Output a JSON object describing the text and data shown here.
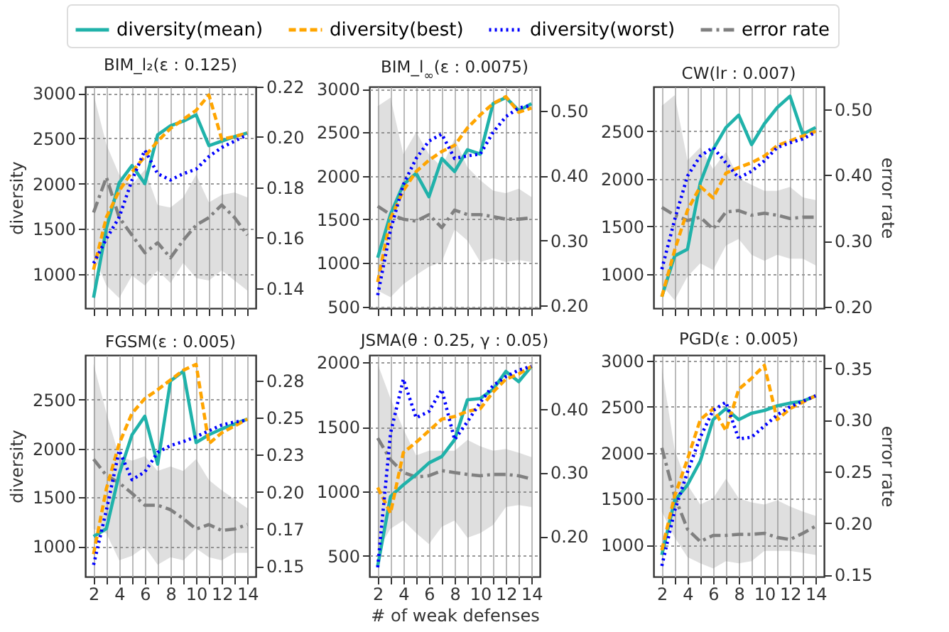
{
  "chart_data": [
    {
      "type": "line",
      "title": "BIM_l₂(ε : 0.125)",
      "ylabel": "diversity",
      "x": [
        2,
        3,
        4,
        5,
        6,
        7,
        8,
        9,
        10,
        11,
        12,
        13,
        14
      ],
      "xlim": [
        1.35,
        14.65
      ],
      "xticks": [
        2,
        {
          "value": 3,
          "label": null
        },
        4,
        {
          "value": 5,
          "label": null
        },
        6,
        {
          "value": 7,
          "label": null
        },
        8,
        {
          "value": 9,
          "label": null
        },
        10,
        {
          "value": 11,
          "label": null
        },
        12,
        {
          "value": 13,
          "label": null
        },
        14
      ],
      "ylim": [
        624,
        3072
      ],
      "yticks": [
        1000,
        1500,
        2000,
        2500,
        3000
      ],
      "y2lim": [
        0.132,
        0.22
      ],
      "y2ticks": [
        0.14,
        0.16,
        0.18,
        {
          "value": 0.2,
          "label": "0.20"
        },
        0.22
      ],
      "grid": true,
      "legend": "top",
      "tick_labels": "y",
      "series": [
        {
          "name": "diversity(mean)",
          "color": "#20b2aa",
          "line_style": "solid",
          "values": [
            740,
            1510,
            2010,
            2200,
            2000,
            2540,
            2640,
            2690,
            2760,
            2420,
            2470,
            2520,
            2560
          ]
        },
        {
          "name": "diversity(best)",
          "color": "#ffa500",
          "line_style": "dashed",
          "values": [
            1050,
            1630,
            1920,
            2130,
            2300,
            2470,
            2610,
            2710,
            2810,
            2980,
            2490,
            2520,
            2560
          ]
        },
        {
          "name": "diversity(worst)",
          "color": "#0000ff",
          "line_style": "dotted",
          "values": [
            1120,
            1390,
            1630,
            2040,
            2370,
            2110,
            2040,
            2110,
            2160,
            2300,
            2400,
            2470,
            2540
          ]
        },
        {
          "name": "error rate",
          "color": "#808080",
          "line_style": "dashdot",
          "axis": "y2",
          "values": [
            0.17,
            0.184,
            0.168,
            0.161,
            0.154,
            0.158,
            0.152,
            0.159,
            0.165,
            0.168,
            0.173,
            0.168,
            0.161
          ],
          "lower": [
            0.153,
            0.141,
            0.136,
            0.145,
            0.141,
            0.147,
            0.142,
            0.15,
            0.144,
            0.143,
            0.147,
            0.143,
            0.139
          ],
          "upper": [
            0.217,
            0.197,
            0.185,
            0.181,
            0.187,
            0.173,
            0.172,
            0.176,
            0.185,
            0.174,
            0.177,
            0.178,
            0.176
          ]
        }
      ]
    },
    {
      "type": "line",
      "title": "BIM_l$_{∞}$(ε : 0.0075)",
      "x": [
        2,
        3,
        4,
        5,
        6,
        7,
        8,
        9,
        10,
        11,
        12,
        13,
        14
      ],
      "xlim": [
        1.35,
        14.65
      ],
      "xticks": [
        2,
        {
          "value": 3,
          "label": null
        },
        4,
        {
          "value": 5,
          "label": null
        },
        6,
        {
          "value": 7,
          "label": null
        },
        8,
        {
          "value": 9,
          "label": null
        },
        10,
        {
          "value": 11,
          "label": null
        },
        12,
        {
          "value": 13,
          "label": null
        },
        14
      ],
      "ylim": [
        480,
        3025
      ],
      "yticks": [
        500,
        1000,
        1500,
        2000,
        2500,
        3000
      ],
      "y2lim": [
        0.196,
        0.537
      ],
      "y2ticks": [
        {
          "value": 0.2,
          "label": "0.20"
        },
        {
          "value": 0.3,
          "label": "0.30"
        },
        {
          "value": 0.4,
          "label": "0.40"
        },
        {
          "value": 0.5,
          "label": "0.50"
        }
      ],
      "grid": true,
      "tick_labels": "y",
      "series": [
        {
          "color": "#20b2aa",
          "line_style": "solid",
          "values": [
            1060,
            1560,
            1900,
            2030,
            1760,
            2200,
            2050,
            2300,
            2250,
            2830,
            2900,
            2750,
            2830
          ]
        },
        {
          "color": "#ffa500",
          "line_style": "dashed",
          "values": [
            780,
            1510,
            1830,
            2050,
            2180,
            2280,
            2350,
            2550,
            2700,
            2830,
            2910,
            2730,
            2780
          ]
        },
        {
          "color": "#0000ff",
          "line_style": "dotted",
          "values": [
            630,
            1380,
            1900,
            2200,
            2400,
            2480,
            2200,
            2230,
            2250,
            2500,
            2680,
            2780,
            2810
          ]
        },
        {
          "color": "#808080",
          "line_style": "dashdot",
          "axis": "y2",
          "values": [
            0.353,
            0.34,
            0.333,
            0.33,
            0.34,
            0.32,
            0.347,
            0.34,
            0.34,
            0.337,
            0.333,
            0.333,
            0.335
          ],
          "lower": [
            0.223,
            0.213,
            0.233,
            0.247,
            0.26,
            0.267,
            0.317,
            0.3,
            0.267,
            0.273,
            0.267,
            0.27,
            0.267
          ],
          "upper": [
            0.507,
            0.52,
            0.433,
            0.467,
            0.433,
            0.413,
            0.457,
            0.413,
            0.393,
            0.377,
            0.373,
            0.38,
            0.367
          ]
        }
      ]
    },
    {
      "type": "line",
      "title": "CW(lr : 0.007)",
      "y2label": "error rate",
      "x": [
        2,
        3,
        4,
        5,
        6,
        7,
        8,
        9,
        10,
        11,
        12,
        13,
        14
      ],
      "xlim": [
        1.35,
        14.65
      ],
      "xticks": [
        2,
        {
          "value": 3,
          "label": null
        },
        4,
        {
          "value": 5,
          "label": null
        },
        6,
        {
          "value": 7,
          "label": null
        },
        8,
        {
          "value": 9,
          "label": null
        },
        10,
        {
          "value": 11,
          "label": null
        },
        12,
        {
          "value": 13,
          "label": null
        },
        14
      ],
      "ylim": [
        640,
        2970
      ],
      "yticks": [
        1000,
        1500,
        2000,
        2500
      ],
      "y2lim": [
        0.198,
        0.534
      ],
      "y2ticks": [
        {
          "value": 0.2,
          "label": "0.20"
        },
        {
          "value": 0.3,
          "label": "0.30"
        },
        {
          "value": 0.4,
          "label": "0.40"
        },
        {
          "value": 0.5,
          "label": "0.50"
        }
      ],
      "grid": true,
      "tick_labels": "y",
      "series": [
        {
          "color": "#20b2aa",
          "line_style": "solid",
          "values": [
            760,
            1190,
            1260,
            1960,
            2310,
            2540,
            2670,
            2360,
            2580,
            2750,
            2870,
            2470,
            2540
          ]
        },
        {
          "color": "#ffa500",
          "line_style": "dashed",
          "values": [
            760,
            1250,
            1670,
            1920,
            1800,
            2060,
            2120,
            2170,
            2240,
            2350,
            2400,
            2450,
            2500
          ]
        },
        {
          "color": "#0000ff",
          "line_style": "dotted",
          "values": [
            1050,
            1570,
            2030,
            2240,
            2330,
            2170,
            2010,
            2080,
            2190,
            2330,
            2380,
            2420,
            2490
          ]
        },
        {
          "color": "#808080",
          "line_style": "dashdot",
          "axis": "y2",
          "values": [
            0.351,
            0.339,
            0.331,
            0.336,
            0.318,
            0.344,
            0.346,
            0.339,
            0.342,
            0.339,
            0.334,
            0.336,
            0.336
          ],
          "lower": [
            0.233,
            0.21,
            0.246,
            0.266,
            0.256,
            0.293,
            0.303,
            0.279,
            0.27,
            0.279,
            0.273,
            0.273,
            0.263
          ],
          "upper": [
            0.505,
            0.521,
            0.422,
            0.442,
            0.409,
            0.435,
            0.395,
            0.385,
            0.376,
            0.376,
            0.382,
            0.366,
            0.362
          ]
        }
      ]
    },
    {
      "type": "line",
      "title": "FGSM(ε : 0.005)",
      "ylabel": "diversity",
      "x": [
        2,
        3,
        4,
        5,
        6,
        7,
        8,
        9,
        10,
        11,
        12,
        13,
        14
      ],
      "xlim": [
        1.35,
        14.65
      ],
      "xticks": [
        2,
        {
          "value": 3,
          "label": null
        },
        4,
        {
          "value": 5,
          "label": null
        },
        6,
        {
          "value": 7,
          "label": null
        },
        8,
        {
          "value": 9,
          "label": null
        },
        10,
        {
          "value": 11,
          "label": null
        },
        12,
        {
          "value": 13,
          "label": null
        },
        14
      ],
      "ylim": [
        690,
        2955
      ],
      "yticks": [
        1000,
        1500,
        2000,
        2500
      ],
      "y2lim": [
        0.143,
        0.292
      ],
      "y2ticks": [
        0.15,
        {
          "value": 0.175,
          "label": "0.17"
        },
        {
          "value": 0.2,
          "label": "0.20"
        },
        {
          "value": 0.225,
          "label": "0.23"
        },
        0.25,
        {
          "value": 0.275,
          "label": "0.28"
        }
      ],
      "grid": true,
      "series": [
        {
          "color": "#20b2aa",
          "line_style": "solid",
          "values": [
            1100,
            1180,
            1740,
            2140,
            2330,
            1840,
            2690,
            2790,
            2060,
            2140,
            2200,
            2250,
            2300
          ]
        },
        {
          "color": "#ffa500",
          "line_style": "dashed",
          "values": [
            920,
            1590,
            2050,
            2360,
            2510,
            2600,
            2700,
            2800,
            2860,
            2050,
            2160,
            2230,
            2300
          ]
        },
        {
          "color": "#0000ff",
          "line_style": "dotted",
          "values": [
            810,
            1370,
            1980,
            1680,
            1760,
            1960,
            2030,
            2070,
            2120,
            2180,
            2240,
            2270,
            2290
          ]
        },
        {
          "color": "#808080",
          "line_style": "dashdot",
          "axis": "y2",
          "values": [
            0.222,
            0.211,
            0.206,
            0.199,
            0.191,
            0.191,
            0.188,
            0.182,
            0.175,
            0.178,
            0.174,
            0.175,
            0.178
          ],
          "lower": [
            0.175,
            0.172,
            0.154,
            0.157,
            0.163,
            0.151,
            0.156,
            0.154,
            0.162,
            0.156,
            0.154,
            0.159,
            0.159
          ],
          "upper": [
            0.286,
            0.253,
            0.224,
            0.221,
            0.224,
            0.214,
            0.217,
            0.214,
            0.222,
            0.208,
            0.201,
            0.195,
            0.189
          ]
        }
      ]
    },
    {
      "type": "line",
      "title": "JSMA(θ : 0.25, γ : 0.05)",
      "xlabel": "# of weak defenses",
      "x": [
        2,
        3,
        4,
        5,
        6,
        7,
        8,
        9,
        10,
        11,
        12,
        13,
        14
      ],
      "xlim": [
        1.35,
        14.65
      ],
      "xticks": [
        2,
        {
          "value": 3,
          "label": null
        },
        4,
        {
          "value": 5,
          "label": null
        },
        6,
        {
          "value": 7,
          "label": null
        },
        8,
        {
          "value": 9,
          "label": null
        },
        10,
        {
          "value": 11,
          "label": null
        },
        12,
        {
          "value": 13,
          "label": null
        },
        14
      ],
      "ylim": [
        338,
        2057
      ],
      "yticks": [
        500,
        1000,
        1500,
        2000
      ],
      "y2lim": [
        0.137,
        0.484
      ],
      "y2ticks": [
        {
          "value": 0.2,
          "label": "0.20"
        },
        {
          "value": 0.3,
          "label": "0.30"
        },
        {
          "value": 0.4,
          "label": "0.40"
        }
      ],
      "grid": true,
      "series": [
        {
          "color": "#20b2aa",
          "line_style": "solid",
          "values": [
            420,
            960,
            1050,
            1130,
            1220,
            1270,
            1400,
            1710,
            1720,
            1790,
            1930,
            1850,
            1970
          ]
        },
        {
          "color": "#ffa500",
          "line_style": "dashed",
          "values": [
            1030,
            830,
            1300,
            1380,
            1470,
            1560,
            1580,
            1620,
            1640,
            1770,
            1870,
            1910,
            1970
          ]
        },
        {
          "color": "#0000ff",
          "line_style": "dotted",
          "values": [
            410,
            1450,
            1870,
            1570,
            1620,
            1790,
            1400,
            1540,
            1690,
            1820,
            1890,
            1940,
            1970
          ]
        },
        {
          "color": "#808080",
          "line_style": "dashdot",
          "axis": "y2",
          "values": [
            0.354,
            0.32,
            0.3,
            0.293,
            0.295,
            0.303,
            0.3,
            0.297,
            0.295,
            0.297,
            0.297,
            0.295,
            0.29
          ],
          "lower": [
            0.178,
            0.212,
            0.225,
            0.205,
            0.188,
            0.215,
            0.225,
            0.198,
            0.205,
            0.218,
            0.246,
            0.249,
            0.246
          ],
          "upper": [
            0.47,
            0.416,
            0.368,
            0.327,
            0.334,
            0.334,
            0.334,
            0.351,
            0.341,
            0.334,
            0.337,
            0.331,
            0.324
          ]
        }
      ]
    },
    {
      "type": "line",
      "title": "PGD(ε : 0.005)",
      "y2label": "error rate",
      "x": [
        2,
        3,
        4,
        5,
        6,
        7,
        8,
        9,
        10,
        11,
        12,
        13,
        14
      ],
      "xlim": [
        1.35,
        14.65
      ],
      "xticks": [
        2,
        {
          "value": 3,
          "label": null
        },
        4,
        {
          "value": 5,
          "label": null
        },
        6,
        {
          "value": 7,
          "label": null
        },
        8,
        {
          "value": 9,
          "label": null
        },
        10,
        {
          "value": 11,
          "label": null
        },
        12,
        {
          "value": 13,
          "label": null
        },
        14
      ],
      "ylim": [
        654,
        3062
      ],
      "yticks": [
        1000,
        1500,
        2000,
        2500,
        3000
      ],
      "y2lim": [
        0.148,
        0.363
      ],
      "y2ticks": [
        0.15,
        {
          "value": 0.2,
          "label": "0.20"
        },
        0.25,
        {
          "value": 0.3,
          "label": "0.30"
        },
        0.35
      ],
      "grid": true,
      "series": [
        {
          "color": "#20b2aa",
          "line_style": "solid",
          "values": [
            890,
            1480,
            1650,
            1910,
            2360,
            2480,
            2360,
            2430,
            2460,
            2510,
            2540,
            2560,
            2620
          ]
        },
        {
          "color": "#ffa500",
          "line_style": "dashed",
          "values": [
            940,
            1530,
            1930,
            2360,
            2480,
            2240,
            2690,
            2810,
            2950,
            2360,
            2480,
            2550,
            2620
          ]
        },
        {
          "color": "#0000ff",
          "line_style": "dotted",
          "values": [
            770,
            1370,
            1790,
            2170,
            2460,
            2550,
            2150,
            2170,
            2290,
            2410,
            2500,
            2560,
            2620
          ]
        },
        {
          "color": "#808080",
          "line_style": "dashdot",
          "axis": "y2",
          "values": [
            0.273,
            0.226,
            0.194,
            0.182,
            0.188,
            0.188,
            0.189,
            0.189,
            0.19,
            0.186,
            0.184,
            0.19,
            0.197
          ],
          "lower": [
            0.211,
            0.186,
            0.167,
            0.161,
            0.156,
            0.163,
            0.161,
            0.163,
            0.173,
            0.173,
            0.173,
            0.171,
            0.169
          ],
          "upper": [
            0.351,
            0.271,
            0.237,
            0.218,
            0.224,
            0.243,
            0.224,
            0.22,
            0.218,
            0.222,
            0.216,
            0.211,
            0.207
          ]
        }
      ]
    }
  ]
}
